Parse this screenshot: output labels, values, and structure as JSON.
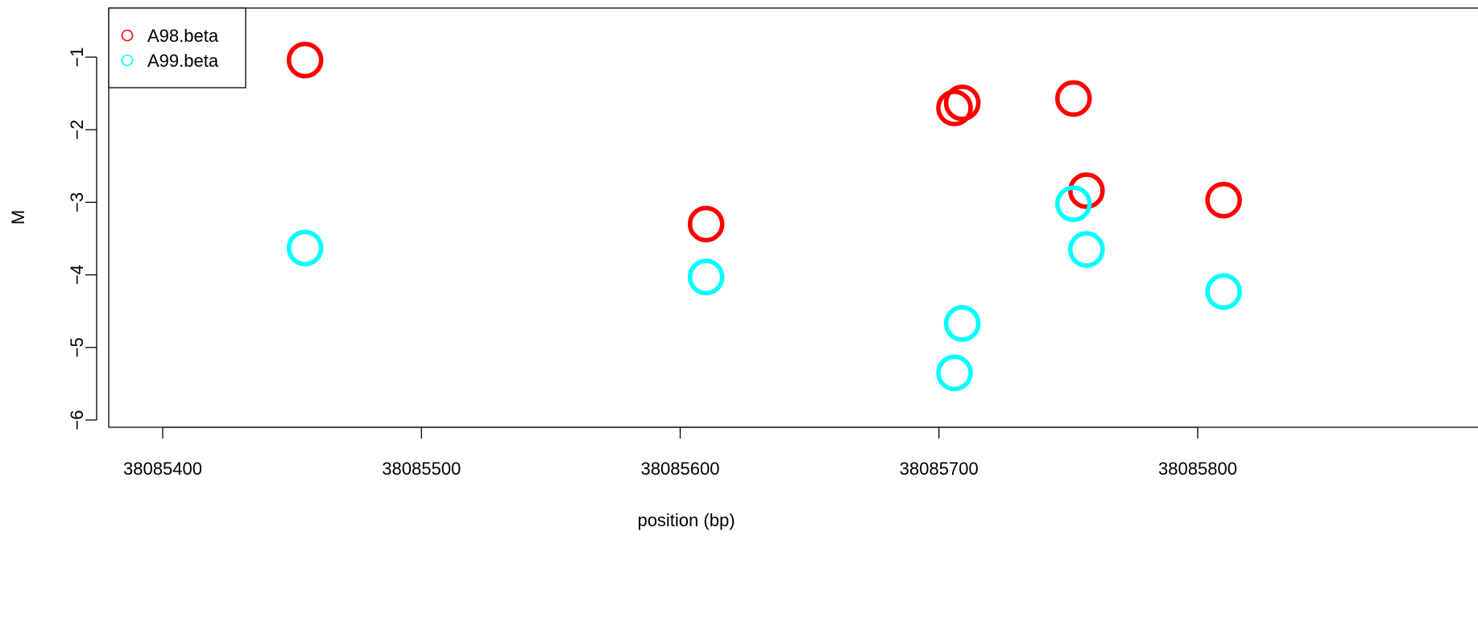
{
  "chart_data": {
    "type": "scatter",
    "title": "",
    "xlabel": "position (bp)",
    "ylabel": "M",
    "xlim": [
      38085379,
      38085825
    ],
    "ylim": [
      -6.08,
      -0.43
    ],
    "x_ticks": [
      38085400,
      38085500,
      38085600,
      38085700,
      38085800
    ],
    "x_tick_labels": [
      "38085400",
      "38085500",
      "38085600",
      "38085700",
      "38085800"
    ],
    "y_ticks": [
      -1,
      -2,
      -3,
      -4,
      -5,
      -6
    ],
    "y_tick_labels": [
      "−1",
      "−2",
      "−3",
      "−4",
      "−5",
      "−6"
    ],
    "grid": false,
    "legend_position": "top-left",
    "marker": "open-circle",
    "series": [
      {
        "name": "A98.beta",
        "color": "#ff0000",
        "points": [
          {
            "x": 38085455,
            "y": -1.04
          },
          {
            "x": 38085610,
            "y": -3.3
          },
          {
            "x": 38085706,
            "y": -1.7
          },
          {
            "x": 38085709,
            "y": -1.63
          },
          {
            "x": 38085752,
            "y": -1.57
          },
          {
            "x": 38085757,
            "y": -2.84
          },
          {
            "x": 38085810,
            "y": -2.97
          }
        ]
      },
      {
        "name": "A99.beta",
        "color": "#00ffff",
        "points": [
          {
            "x": 38085455,
            "y": -3.63
          },
          {
            "x": 38085610,
            "y": -4.03
          },
          {
            "x": 38085706,
            "y": -5.35
          },
          {
            "x": 38085709,
            "y": -4.67
          },
          {
            "x": 38085752,
            "y": -3.02
          },
          {
            "x": 38085757,
            "y": -3.65
          },
          {
            "x": 38085810,
            "y": -4.23
          }
        ]
      }
    ]
  }
}
